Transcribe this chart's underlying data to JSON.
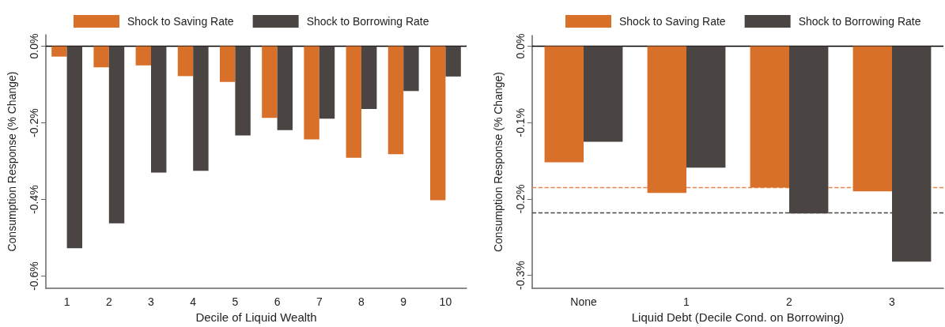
{
  "chart_data": [
    {
      "type": "bar",
      "categories": [
        "1",
        "2",
        "3",
        "4",
        "5",
        "6",
        "7",
        "8",
        "9",
        "10"
      ],
      "series": [
        {
          "name": "Shock to Saving Rate",
          "color": "#d9702a",
          "values": [
            -0.027,
            -0.055,
            -0.05,
            -0.078,
            -0.093,
            -0.187,
            -0.243,
            -0.291,
            -0.282,
            -0.402
          ]
        },
        {
          "name": "Shock to Borrowing Rate",
          "color": "#4a4542",
          "values": [
            -0.527,
            -0.462,
            -0.33,
            -0.325,
            -0.233,
            -0.219,
            -0.189,
            -0.164,
            -0.117,
            -0.079
          ]
        }
      ],
      "xlabel": "Decile of Liquid Wealth",
      "ylabel": "Consumption Response (% Change)",
      "ylim": [
        -0.632,
        0.03
      ],
      "yticks": [
        {
          "value": 0,
          "label": "0.0%"
        },
        {
          "value": -0.2,
          "label": "-0.2%"
        },
        {
          "value": -0.4,
          "label": "-0.4%"
        },
        {
          "value": -0.6,
          "label": "-0.6%"
        }
      ],
      "ref_lines": [
        {
          "axis": "y",
          "value": 0,
          "color": "#000000",
          "line_style": "solid"
        }
      ],
      "legend": "top"
    },
    {
      "type": "bar",
      "categories": [
        "None",
        "1",
        "2",
        "3"
      ],
      "series": [
        {
          "name": "Shock to Saving Rate",
          "color": "#d9702a",
          "values": [
            -0.152,
            -0.192,
            -0.185,
            -0.19
          ]
        },
        {
          "name": "Shock to Borrowing Rate",
          "color": "#4a4542",
          "values": [
            -0.125,
            -0.159,
            -0.219,
            -0.282
          ]
        }
      ],
      "xlabel": "Liquid Debt (Decile Cond. on Borrowing)",
      "ylabel": "Consumption Response (% Change)",
      "ylim": [
        -0.317,
        0.014
      ],
      "yticks": [
        {
          "value": 0,
          "label": "0.0%"
        },
        {
          "value": -0.1,
          "label": "-0.1%"
        },
        {
          "value": -0.2,
          "label": "-0.2%"
        },
        {
          "value": -0.3,
          "label": "-0.3%"
        }
      ],
      "ref_lines": [
        {
          "axis": "y",
          "value": 0,
          "color": "#000000",
          "line_style": "solid"
        },
        {
          "axis": "y",
          "value": -0.185,
          "color": "#e8864a",
          "line_style": "dashed"
        },
        {
          "axis": "y",
          "value": -0.218,
          "color": "#4a4542",
          "line_style": "dashed"
        }
      ],
      "legend": "top"
    }
  ]
}
